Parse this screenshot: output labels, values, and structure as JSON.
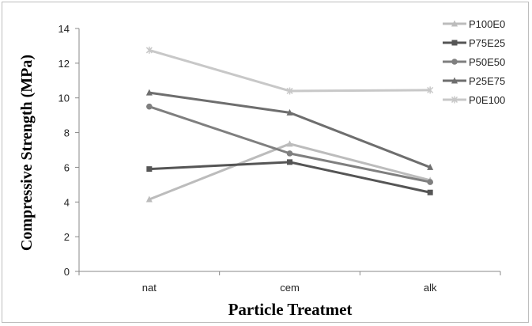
{
  "chart_data": {
    "type": "line",
    "xlabel": "Particle Treatmet",
    "ylabel": "Compressive Strength (MPa)",
    "categories": [
      "nat",
      "cem",
      "alk"
    ],
    "ylim": [
      0,
      14
    ],
    "yticks": [
      0,
      2,
      4,
      6,
      8,
      10,
      12,
      14
    ],
    "grid": false,
    "legend_position": "right",
    "series": [
      {
        "name": "P100E0",
        "values": [
          4.15,
          7.35,
          5.25
        ],
        "color": "#bcbcbc",
        "marker": "triangle"
      },
      {
        "name": "P75E25",
        "values": [
          5.9,
          6.3,
          4.55
        ],
        "color": "#555555",
        "marker": "square"
      },
      {
        "name": "P50E50",
        "values": [
          9.5,
          6.8,
          5.15
        ],
        "color": "#7f7f7f",
        "marker": "circle"
      },
      {
        "name": "P25E75",
        "values": [
          10.3,
          9.15,
          6.0
        ],
        "color": "#6e6e6e",
        "marker": "triangle"
      },
      {
        "name": "P0E100",
        "values": [
          12.75,
          10.4,
          10.45
        ],
        "color": "#c8c8c8",
        "marker": "star"
      }
    ]
  }
}
